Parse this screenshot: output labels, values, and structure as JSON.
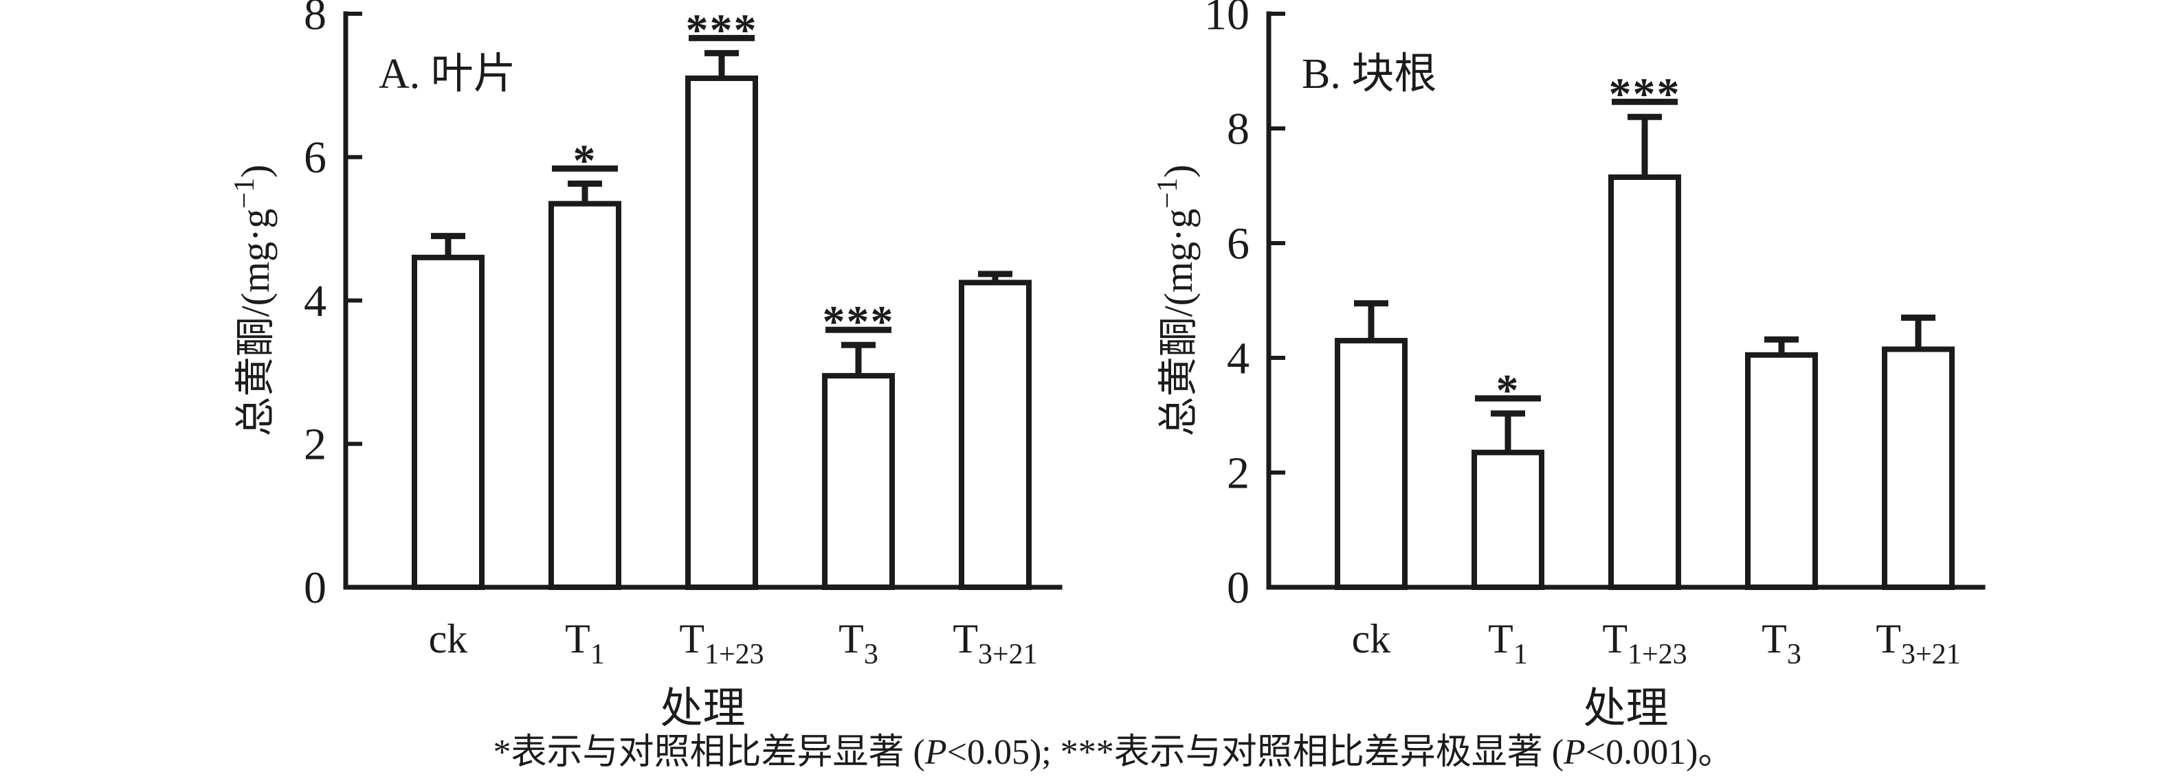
{
  "figure": {
    "background": "#ffffff",
    "ink_color": "#1b1b1b",
    "caption_parts": [
      {
        "text": "*表示与对照相比差异显著 (",
        "italic": false
      },
      {
        "text": "P",
        "italic": true
      },
      {
        "text": "<0.05);  ",
        "italic": false
      },
      {
        "text": "***表示与对照相比差异极显著 (",
        "italic": false
      },
      {
        "text": "P",
        "italic": true
      },
      {
        "text": "<0.001)。",
        "italic": false
      }
    ]
  },
  "chart_data": [
    {
      "type": "bar",
      "panel_label": "A. 叶片",
      "ylabel": {
        "pre": "总黄酮/(mg·g",
        "sup": "−1",
        "post": ")"
      },
      "xlabel": "处理",
      "ylim": [
        0,
        8
      ],
      "yticks": [
        0,
        2,
        4,
        6,
        8
      ],
      "grid": false,
      "legend": "none",
      "bar_fill": "#ffffff",
      "categories": [
        {
          "label": "ck",
          "sub": "",
          "key": "ck"
        },
        {
          "label": "T",
          "sub": "1",
          "key": "t1"
        },
        {
          "label": "T",
          "sub": "1+23",
          "key": "t1-23"
        },
        {
          "label": "T",
          "sub": "3",
          "key": "t3"
        },
        {
          "label": "T",
          "sub": "3+21",
          "key": "t3-21"
        }
      ],
      "values": [
        4.6,
        5.35,
        7.1,
        2.95,
        4.25
      ],
      "errors_plus": [
        0.3,
        0.28,
        0.35,
        0.43,
        0.12
      ],
      "significance": [
        "",
        "*",
        "***",
        "***",
        ""
      ]
    },
    {
      "type": "bar",
      "panel_label": "B. 块根",
      "ylabel": {
        "pre": "总黄酮/(mg·g",
        "sup": "−1",
        "post": ")"
      },
      "xlabel": "处理",
      "ylim": [
        0,
        10
      ],
      "yticks": [
        0,
        2,
        4,
        6,
        8,
        10
      ],
      "grid": false,
      "legend": "none",
      "bar_fill": "#ffffff",
      "categories": [
        {
          "label": "ck",
          "sub": "",
          "key": "ck"
        },
        {
          "label": "T",
          "sub": "1",
          "key": "t1"
        },
        {
          "label": "T",
          "sub": "1+23",
          "key": "t1-23"
        },
        {
          "label": "T",
          "sub": "3",
          "key": "t3"
        },
        {
          "label": "T",
          "sub": "3+21",
          "key": "t3-21"
        }
      ],
      "values": [
        4.3,
        2.35,
        7.15,
        4.05,
        4.15
      ],
      "errors_plus": [
        0.65,
        0.68,
        1.05,
        0.27,
        0.55
      ],
      "significance": [
        "",
        "*",
        "***",
        "",
        ""
      ]
    }
  ]
}
